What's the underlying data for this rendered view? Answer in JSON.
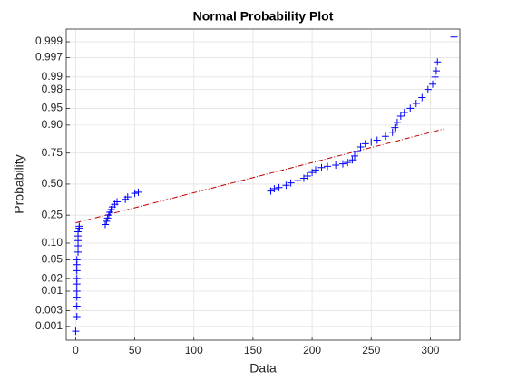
{
  "chart_data": {
    "type": "scatter",
    "title": "Normal Probability Plot",
    "x_label": "Data",
    "y_label": "Probability",
    "yscale": "normal",
    "grid": true,
    "color": "#0000ff",
    "marker": "+",
    "xlim": [
      -8,
      325
    ],
    "xticks": [
      0,
      50,
      100,
      150,
      200,
      250,
      300
    ],
    "ylim": [
      0.00035,
      0.99962
    ],
    "yticks": [
      0.001,
      0.003,
      0.01,
      0.02,
      0.05,
      {
        "value": 0.1,
        "label": "0.10"
      },
      0.25,
      {
        "value": 0.5,
        "label": "0.50"
      },
      0.75,
      {
        "value": 0.9,
        "label": "0.90"
      },
      0.95,
      0.98,
      0.99,
      0.997,
      0.999
    ],
    "x": [
      0,
      1,
      1,
      1,
      1,
      1,
      1,
      1,
      1,
      1,
      2,
      2,
      2,
      2,
      2,
      3,
      3,
      25,
      26,
      27,
      28,
      29,
      30,
      31,
      33,
      35,
      42,
      44,
      50,
      53,
      165,
      168,
      172,
      178,
      182,
      188,
      193,
      196,
      200,
      203,
      208,
      213,
      220,
      226,
      230,
      234,
      236,
      238,
      241,
      245,
      250,
      255,
      262,
      268,
      270,
      272,
      275,
      278,
      283,
      288,
      293,
      298,
      302,
      304,
      305,
      306,
      320
    ],
    "y": [
      0.0007,
      0.002,
      0.004,
      0.007,
      0.01,
      0.015,
      0.02,
      0.03,
      0.04,
      0.05,
      0.07,
      0.09,
      0.11,
      0.13,
      0.15,
      0.17,
      0.18,
      0.19,
      0.21,
      0.23,
      0.25,
      0.27,
      0.29,
      0.31,
      0.33,
      0.35,
      0.37,
      0.39,
      0.42,
      0.43,
      0.44,
      0.46,
      0.47,
      0.49,
      0.51,
      0.53,
      0.55,
      0.57,
      0.6,
      0.62,
      0.64,
      0.65,
      0.66,
      0.67,
      0.68,
      0.7,
      0.73,
      0.76,
      0.79,
      0.81,
      0.82,
      0.83,
      0.85,
      0.87,
      0.89,
      0.91,
      0.93,
      0.94,
      0.95,
      0.96,
      0.97,
      0.98,
      0.985,
      0.99,
      0.993,
      0.996,
      0.9993
    ],
    "reference_line": {
      "color": "#c00000",
      "x": [
        0,
        312
      ],
      "y": [
        0.2,
        0.885
      ]
    }
  }
}
